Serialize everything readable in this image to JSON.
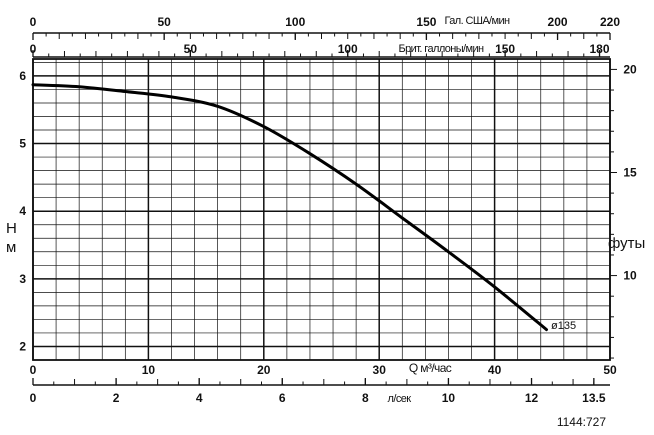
{
  "chart_data": {
    "type": "line",
    "series": [
      {
        "name": "ø135",
        "x": [
          0,
          4,
          8,
          12,
          16,
          20,
          24,
          28,
          32,
          36,
          40,
          44.5
        ],
        "y": [
          5.87,
          5.84,
          5.77,
          5.69,
          5.55,
          5.25,
          4.85,
          4.4,
          3.9,
          3.4,
          2.88,
          2.25
        ]
      }
    ],
    "curve_label": "ø135",
    "axes": {
      "us_gpm": {
        "label": "Гал. США/мин",
        "range": [
          0,
          220
        ],
        "ticks": [
          "0",
          "50",
          "100",
          "150",
          "200",
          "220"
        ]
      },
      "imp_gpm": {
        "label": "Брит. галлоны/мин",
        "range": [
          0,
          183.33
        ],
        "ticks": [
          "0",
          "50",
          "100",
          "150",
          "180"
        ]
      },
      "q_m3h": {
        "label": "Q м³/час",
        "range": [
          0,
          50
        ],
        "ticks": [
          "0",
          "10",
          "20",
          "30",
          "40",
          "50"
        ]
      },
      "ls": {
        "label": "л/сек",
        "range": [
          0,
          13.889
        ],
        "ticks": [
          "0",
          "2",
          "4",
          "6",
          "8",
          "10",
          "12",
          "13.5"
        ]
      },
      "head_m": {
        "label_line1": "Н",
        "label_line2": "м",
        "range": [
          1.8,
          6.25
        ],
        "ticks": [
          "2",
          "3",
          "4",
          "5",
          "6"
        ]
      },
      "head_ft": {
        "label": "футы",
        "range": [
          5.905,
          20.505
        ],
        "ticks": [
          "10",
          "15",
          "20"
        ]
      }
    },
    "grid": true,
    "reference": "1144:727"
  }
}
